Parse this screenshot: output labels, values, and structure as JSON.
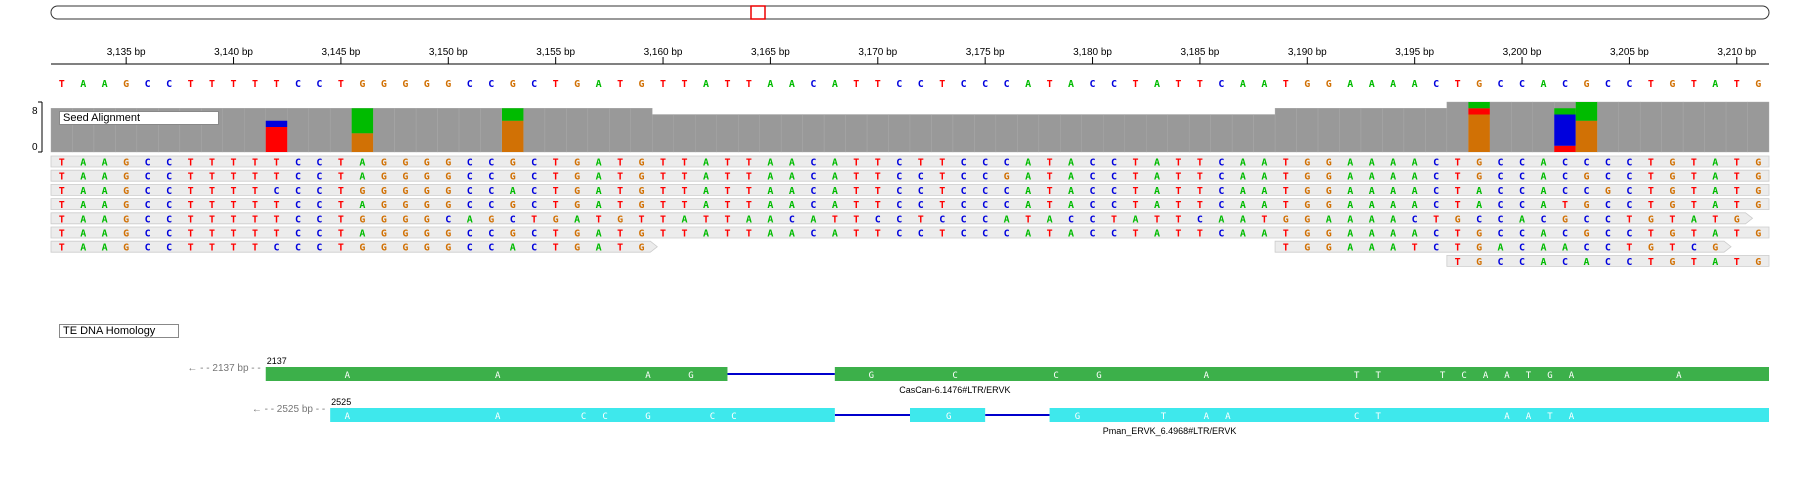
{
  "ruler": {
    "start_bp": 3132,
    "end_bp": 3210,
    "ticks": [
      {
        "bp": 3135,
        "label": "3,135 bp"
      },
      {
        "bp": 3140,
        "label": "3,140 bp"
      },
      {
        "bp": 3145,
        "label": "3,145 bp"
      },
      {
        "bp": 3150,
        "label": "3,150 bp"
      },
      {
        "bp": 3155,
        "label": "3,155 bp"
      },
      {
        "bp": 3160,
        "label": "3,160 bp"
      },
      {
        "bp": 3165,
        "label": "3,165 bp"
      },
      {
        "bp": 3170,
        "label": "3,170 bp"
      },
      {
        "bp": 3175,
        "label": "3,175 bp"
      },
      {
        "bp": 3180,
        "label": "3,180 bp"
      },
      {
        "bp": 3185,
        "label": "3,185 bp"
      },
      {
        "bp": 3190,
        "label": "3,190 bp"
      },
      {
        "bp": 3195,
        "label": "3,195 bp"
      },
      {
        "bp": 3200,
        "label": "3,200 bp"
      },
      {
        "bp": 3205,
        "label": "3,205 bp"
      },
      {
        "bp": 3210,
        "label": "3,210 bp"
      }
    ]
  },
  "colors": {
    "A": "#00bb00",
    "C": "#0000dd",
    "G": "#d17105",
    "T": "#ff0000",
    "coverage": "#999999",
    "read_bg": "#ececec",
    "read_border": "#cccccc",
    "feature1": "#3cb04a",
    "feature2": "#3ee8ec",
    "intron": "#0000cc"
  },
  "reference": "TAAGCCTTTTTCCTGGGGGCCGCTGATGTTATTAACATTCCTCCCATACCTATTCAATGGAAAACTGCCACGCCTGTATG",
  "seed_alignment": {
    "label": "Seed Alignment",
    "axis_max": "8",
    "axis_min": "0",
    "coverage_levels": [
      {
        "from": 0,
        "to": 28,
        "depth": 7
      },
      {
        "from": 28,
        "to": 57,
        "depth": 6
      },
      {
        "from": 57,
        "to": 65,
        "depth": 7
      },
      {
        "from": 65,
        "to": 80,
        "depth": 8
      }
    ],
    "mismatch_columns": [
      {
        "col": 10,
        "stack": [
          [
            "T",
            4
          ],
          [
            "C",
            1
          ]
        ]
      },
      {
        "col": 14,
        "stack": [
          [
            "G",
            3
          ],
          [
            "A",
            4
          ]
        ]
      },
      {
        "col": 21,
        "stack": [
          [
            "G",
            5
          ],
          [
            "A",
            2
          ]
        ]
      },
      {
        "col": 66,
        "stack": [
          [
            "G",
            6
          ],
          [
            "T",
            1
          ],
          [
            "A",
            1
          ]
        ]
      },
      {
        "col": 70,
        "stack": [
          [
            "T",
            1
          ],
          [
            "C",
            5
          ],
          [
            "A",
            1
          ]
        ]
      },
      {
        "col": 71,
        "stack": [
          [
            "G",
            5
          ],
          [
            "A",
            3
          ]
        ]
      }
    ]
  },
  "reads": [
    {
      "start": 0,
      "seq": "TAAGCCTTTTTCCTAGGGGCCGCTGATGTTATTAACATTCTTCCCATACCTATTCAATGGAAAACTGCCACCCCTGTATG"
    },
    {
      "start": 0,
      "seq": "TAAGCCTTTTTCCTAGGGGCCGCTGATGTTATTAACATTCCTCCGATACCTATTCAATGGAAAACTGCCACGCCTGTATG"
    },
    {
      "start": 0,
      "seq": "TAAGCCTTTTCCCTGGGGGCCACTGATGTTATTAACATTCCTCCCATACCTATTCAATGGAAAACTACCACCGCTGTATG"
    },
    {
      "start": 0,
      "seq": "TAAGCCTTTTTCCTAGGGGCCGCTGATGTTATTAACATTCCTCCCATACCTATTCAATGGAAAACTACCATGCCTGTATG"
    },
    {
      "start": 0,
      "seq": "TAAGCCTTTTTCCTGGGGCAGCTGATGTTATTAACATTCCTCCCATACCTATTCAATGGAAAACTGCCACGCCTGTATG"
    },
    {
      "start": 0,
      "seq": "TAAGCCTTTTTCCTAGGGGCCGCTGATGTTATTAACATTCCTCCCATACCTATTCAATGGAAAACTGCCACGCCTGTATG"
    },
    {
      "start": 0,
      "seq": "TAAGCCTTTTCCCTGGGGGCCACTGATG"
    },
    {
      "start": 57,
      "seq": "TGGAAATCTGACAACCTGTCG"
    },
    {
      "start": 65,
      "seq": "TGCCACACCTGTATG"
    }
  ],
  "te_homology": {
    "label": "TE DNA Homology",
    "features": [
      {
        "name": "CasCan-6.1476#LTR/ERVK",
        "offscreen_label": "2137 bp",
        "start_label": "2137",
        "blocks": [
          {
            "from": 10,
            "to": 31.5
          },
          {
            "from": 36.5,
            "to": 80
          }
        ],
        "bases": [
          {
            "p": 13.8,
            "b": "A"
          },
          {
            "p": 20.8,
            "b": "A"
          },
          {
            "p": 27.8,
            "b": "A"
          },
          {
            "p": 29.8,
            "b": "G"
          },
          {
            "p": 38.2,
            "b": "G"
          },
          {
            "p": 42.1,
            "b": "C"
          },
          {
            "p": 46.8,
            "b": "C"
          },
          {
            "p": 48.8,
            "b": "G"
          },
          {
            "p": 53.8,
            "b": "A"
          },
          {
            "p": 60.8,
            "b": "T"
          },
          {
            "p": 61.8,
            "b": "T"
          },
          {
            "p": 64.8,
            "b": "T"
          },
          {
            "p": 65.8,
            "b": "C"
          },
          {
            "p": 66.8,
            "b": "A"
          },
          {
            "p": 67.8,
            "b": "A"
          },
          {
            "p": 68.8,
            "b": "T"
          },
          {
            "p": 69.8,
            "b": "G"
          },
          {
            "p": 70.8,
            "b": "A"
          },
          {
            "p": 75.8,
            "b": "A"
          }
        ]
      },
      {
        "name": "Pman_ERVK_6.4968#LTR/ERVK",
        "offscreen_label": "2525 bp",
        "start_label": "2525",
        "blocks": [
          {
            "from": 13,
            "to": 36.5
          },
          {
            "from": 40,
            "to": 43.5
          },
          {
            "from": 46.5,
            "to": 80
          }
        ],
        "bases": [
          {
            "p": 13.8,
            "b": "A"
          },
          {
            "p": 20.8,
            "b": "A"
          },
          {
            "p": 24.8,
            "b": "C"
          },
          {
            "p": 25.8,
            "b": "C"
          },
          {
            "p": 27.8,
            "b": "G"
          },
          {
            "p": 30.8,
            "b": "C"
          },
          {
            "p": 31.8,
            "b": "C"
          },
          {
            "p": 41.8,
            "b": "G"
          },
          {
            "p": 47.8,
            "b": "G"
          },
          {
            "p": 51.8,
            "b": "T"
          },
          {
            "p": 53.8,
            "b": "A"
          },
          {
            "p": 54.8,
            "b": "A"
          },
          {
            "p": 60.8,
            "b": "C"
          },
          {
            "p": 61.8,
            "b": "T"
          },
          {
            "p": 67.8,
            "b": "A"
          },
          {
            "p": 68.8,
            "b": "A"
          },
          {
            "p": 69.8,
            "b": "T"
          },
          {
            "p": 70.8,
            "b": "A"
          }
        ]
      }
    ]
  }
}
